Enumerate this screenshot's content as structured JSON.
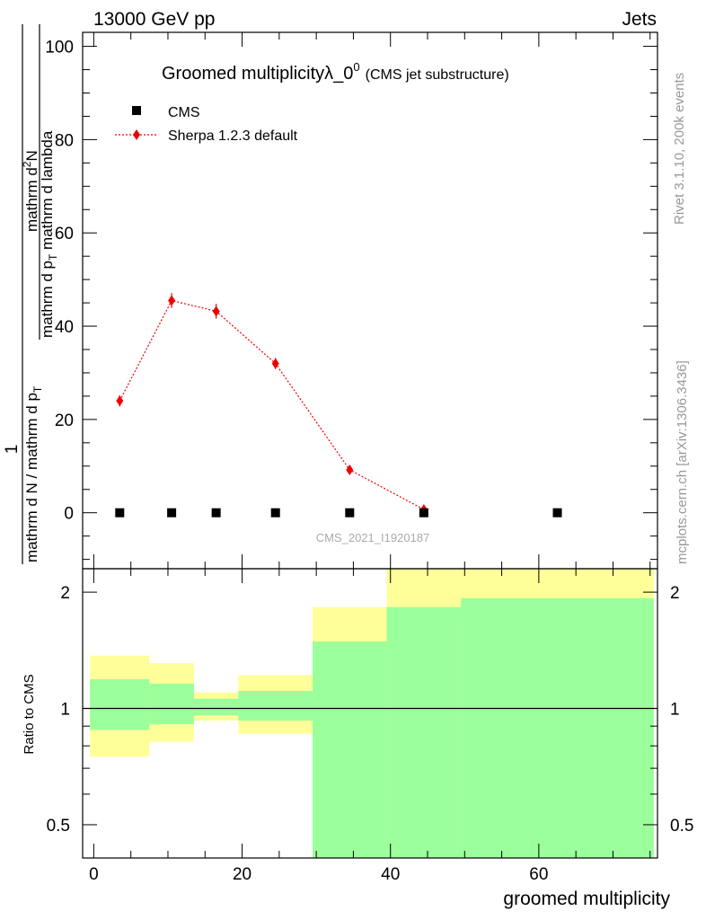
{
  "header": {
    "left": "13000 GeV pp",
    "right": "Jets"
  },
  "title": {
    "main": "Groomed multiplicity",
    "lambda": "λ_0",
    "sup": "0",
    "sub": "(CMS jet substructure)"
  },
  "side_labels": {
    "rivet": "Rivet 3.1.10,  200k events",
    "mcplots": "mcplots.cern.ch [arXiv:1306.3436]"
  },
  "watermark": "CMS_2021_I1920187",
  "legend": {
    "cms": "CMS",
    "sherpa": "Sherpa 1.2.3 default"
  },
  "y_label_main": {
    "num_1": "1",
    "den_1": "mathrm d N / mathrm d p",
    "den_1_sub": "T",
    "num_2": "mathrm d",
    "num_2_sup": "2",
    "num_2_rest": "N",
    "den_2": "mathrm d p",
    "den_2_sub": "T",
    "den_2_rest": " mathrm d lambda"
  },
  "y_label_ratio": "Ratio to CMS",
  "x_label": "groomed multiplicity",
  "colors": {
    "sherpa": "#ee0000",
    "cms": "#000000",
    "band_inner": "#9bff9b",
    "band_outer": "#ffff99"
  },
  "chart_data": {
    "type": "scatter",
    "x_range": [
      -1.5,
      76
    ],
    "main": {
      "y_range": [
        -12,
        103
      ],
      "y_ticks": [
        0,
        20,
        40,
        60,
        80,
        100
      ],
      "series": [
        {
          "name": "CMS",
          "x": [
            3.5,
            10.5,
            16.5,
            24.5,
            34.5,
            44.5,
            62.5
          ],
          "y": [
            0,
            0,
            0,
            0,
            0,
            0,
            0
          ]
        },
        {
          "name": "Sherpa 1.2.3 default",
          "x": [
            3.5,
            10.5,
            16.5,
            24.5,
            34.5,
            44.5
          ],
          "y": [
            24,
            45.5,
            43.2,
            32,
            9.2,
            0.7
          ],
          "yerr": [
            1.2,
            1.6,
            1.6,
            1.2,
            0.7,
            0.3
          ]
        }
      ]
    },
    "ratio": {
      "y_range": [
        0.41,
        2.3
      ],
      "y_scale": "log",
      "y_ticks": [
        0.5,
        1,
        2
      ],
      "reference_line": 1,
      "bands": [
        {
          "x": [
            -0.5,
            7.5
          ],
          "inner": [
            0.88,
            1.19
          ],
          "outer": [
            0.75,
            1.37
          ]
        },
        {
          "x": [
            7.5,
            13.5
          ],
          "inner": [
            0.91,
            1.16
          ],
          "outer": [
            0.82,
            1.31
          ]
        },
        {
          "x": [
            13.5,
            19.5
          ],
          "inner": [
            0.96,
            1.06
          ],
          "outer": [
            0.93,
            1.1
          ]
        },
        {
          "x": [
            19.5,
            29.5
          ],
          "inner": [
            0.93,
            1.11
          ],
          "outer": [
            0.86,
            1.22
          ]
        },
        {
          "x": [
            29.5,
            39.5
          ],
          "inner": [
            0,
            1.49
          ],
          "outer": [
            0.63,
            1.83
          ]
        },
        {
          "x": [
            39.5,
            49.5
          ],
          "inner": [
            0,
            1.83
          ],
          "outer": [
            0,
            2.5
          ]
        },
        {
          "x": [
            49.5,
            75.5
          ],
          "inner": [
            0,
            1.93
          ],
          "outer": [
            0,
            2.5
          ]
        }
      ]
    },
    "x_ticks": [
      0,
      20,
      40,
      60
    ]
  }
}
